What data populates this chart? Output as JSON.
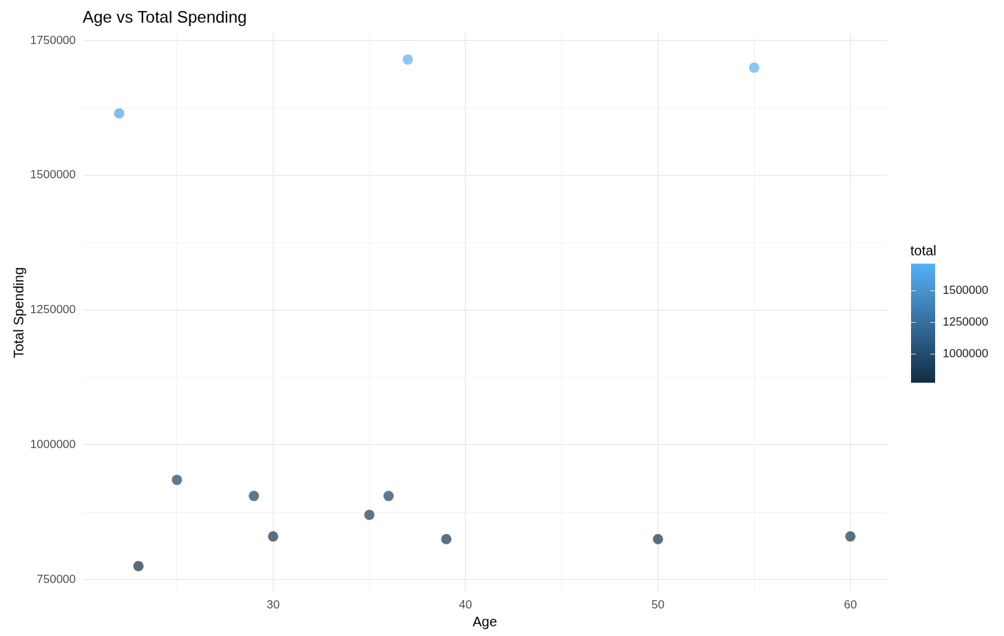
{
  "chart_data": {
    "type": "scatter",
    "title": "Age vs Total Spending",
    "xlabel": "Age",
    "ylabel": "Total Spending",
    "clabel": "total",
    "x": [
      22,
      23,
      25,
      29,
      30,
      35,
      36,
      37,
      39,
      50,
      55,
      60
    ],
    "values": [
      1615000,
      775000,
      935000,
      905000,
      830000,
      870000,
      905000,
      1715000,
      825000,
      825000,
      1700000,
      830000
    ],
    "cvalues": [
      1615000,
      775000,
      935000,
      905000,
      830000,
      870000,
      905000,
      1715000,
      825000,
      825000,
      1700000,
      830000
    ],
    "clim": [
      775000,
      1715000
    ],
    "cticks": [
      1000000,
      1250000,
      1500000
    ],
    "xlim": [
      20.1,
      61.9
    ],
    "xticks": [
      {
        "value": 25,
        "label": null
      },
      30,
      {
        "value": 35,
        "label": null
      },
      40,
      {
        "value": 45,
        "label": null
      },
      50,
      {
        "value": 55,
        "label": null
      },
      60
    ],
    "ylim": [
      727000,
      1763000
    ],
    "yticks": [
      750000,
      {
        "value": 875000,
        "label": null
      },
      1000000,
      {
        "value": 1125000,
        "label": null
      },
      1250000,
      {
        "value": 1375000,
        "label": null
      },
      1500000,
      {
        "value": 1625000,
        "label": null
      },
      1750000
    ],
    "grid": true,
    "marker": "circle"
  }
}
